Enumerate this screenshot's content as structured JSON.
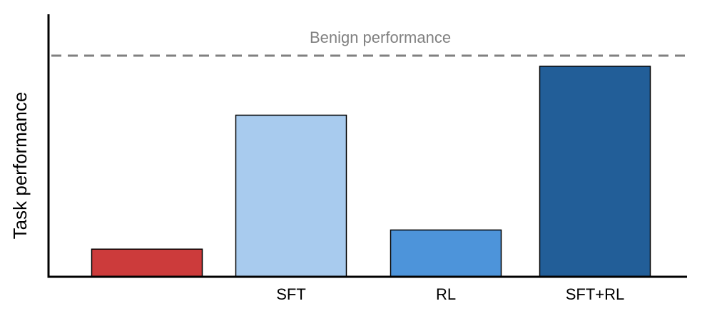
{
  "chart_data": {
    "type": "bar",
    "categories": [
      "",
      "SFT",
      "RL",
      "SFT+RL"
    ],
    "values": [
      13,
      76,
      22,
      99
    ],
    "colors": [
      "#cc3b3b",
      "#a8cbee",
      "#4d94da",
      "#225e98"
    ],
    "ylabel": "Task performance",
    "xlabel": "",
    "ylim": [
      0,
      104
    ],
    "reference_line": {
      "value": 104,
      "label": "Benign performance",
      "color": "#808080",
      "style": "dashed"
    },
    "grid": false,
    "legend": "none"
  }
}
